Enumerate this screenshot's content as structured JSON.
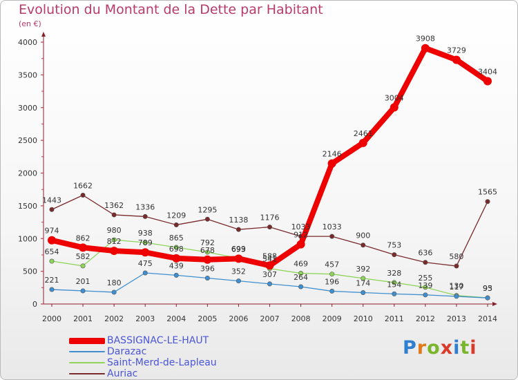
{
  "title": "Evolution du Montant de la Dette par Habitant",
  "subtitle": "(en €)",
  "logo_text": "Proxiti",
  "chart_data": {
    "type": "line",
    "x": [
      "2000",
      "2001",
      "2002",
      "2003",
      "2004",
      "2005",
      "2006",
      "2007",
      "2008",
      "2009",
      "2010",
      "2011",
      "2012",
      "2013",
      "2014"
    ],
    "ylim": [
      0,
      4000
    ],
    "yticks": [
      0,
      500,
      1000,
      1500,
      2000,
      2500,
      3000,
      3500,
      4000
    ],
    "grid": false,
    "legend_position": "bottom-left",
    "series": [
      {
        "name": "BASSIGNAC-LE-HAUT",
        "color": "#ee0000",
        "values": [
          974,
          862,
          812,
          789,
          698,
          678,
          693,
          588,
          912,
          2146,
          2461,
          3004,
          3908,
          3729,
          3404
        ],
        "labels": [
          "974",
          "862",
          "812",
          "789",
          "698",
          "678",
          "693",
          "588",
          "912",
          "2146",
          "2461",
          "3004",
          "3908",
          "3729",
          "3404"
        ]
      },
      {
        "name": "Darazac",
        "color": "#3f8fd0",
        "values": [
          221,
          201,
          180,
          475,
          439,
          396,
          352,
          307,
          264,
          196,
          174,
          154,
          139,
          117,
          93
        ],
        "labels": [
          "221",
          "201",
          "180",
          "475",
          "439",
          "396",
          "352",
          "307",
          "264",
          "196",
          "174",
          "154",
          "139",
          "117",
          "93"
        ]
      },
      {
        "name": "Saint-Merd-de-Lapleau",
        "color": "#8ed45a",
        "values": [
          654,
          582,
          980,
          938,
          865,
          792,
          699,
          541,
          469,
          457,
          392,
          328,
          255,
          130,
          95
        ],
        "labels": [
          "654",
          "582",
          "980",
          "938",
          "865",
          "792",
          "699",
          "541",
          "469",
          "457",
          "392",
          "328",
          "255",
          "130",
          "95"
        ]
      },
      {
        "name": "Auriac",
        "color": "#7a2a2a",
        "values": [
          1443,
          1662,
          1362,
          1336,
          1209,
          1295,
          1138,
          1176,
          1033,
          1033,
          900,
          753,
          636,
          580,
          1565
        ],
        "labels": [
          "1443",
          "1662",
          "1362",
          "1336",
          "1209",
          "1295",
          "1138",
          "1176",
          "1033",
          "1033",
          "900",
          "753",
          "636",
          "580",
          "1565"
        ]
      }
    ]
  }
}
